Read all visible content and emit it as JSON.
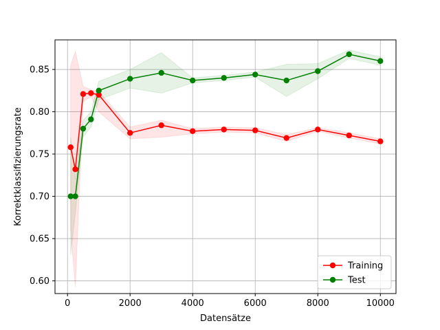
{
  "chart_data": {
    "type": "line",
    "title": "",
    "xlabel": "Datensätze",
    "ylabel": "Korrektklassifizierungsrate",
    "xlim": [
      -400,
      10500
    ],
    "ylim": [
      0.585,
      0.885
    ],
    "xticks": [
      0,
      2000,
      4000,
      6000,
      8000,
      10000
    ],
    "yticks": [
      0.6,
      0.65,
      0.7,
      0.75,
      0.8,
      0.85
    ],
    "xtick_labels": [
      "0",
      "2000",
      "4000",
      "6000",
      "8000",
      "10000"
    ],
    "ytick_labels": [
      "0.60",
      "0.65",
      "0.70",
      "0.75",
      "0.80",
      "0.85"
    ],
    "grid": true,
    "legend_position": "lower-right",
    "x": [
      100,
      250,
      500,
      750,
      1000,
      2000,
      3000,
      4000,
      5000,
      6000,
      7000,
      8000,
      9000,
      10000
    ],
    "series": [
      {
        "name": "Training",
        "color": "#ff0000",
        "band_color": "#ff0000",
        "values": [
          0.758,
          0.732,
          0.821,
          0.822,
          0.82,
          0.775,
          0.784,
          0.777,
          0.779,
          0.778,
          0.769,
          0.779,
          0.772,
          0.765
        ],
        "upper": [
          0.855,
          0.871,
          0.83,
          0.826,
          0.824,
          0.782,
          0.79,
          0.78,
          0.782,
          0.781,
          0.773,
          0.781,
          0.775,
          0.768
        ],
        "lower": [
          0.661,
          0.593,
          0.812,
          0.818,
          0.8,
          0.768,
          0.77,
          0.774,
          0.776,
          0.775,
          0.765,
          0.777,
          0.769,
          0.762
        ]
      },
      {
        "name": "Test",
        "color": "#008000",
        "band_color": "#008000",
        "values": [
          0.7,
          0.7,
          0.78,
          0.791,
          0.825,
          0.839,
          0.846,
          0.837,
          0.84,
          0.844,
          0.837,
          0.848,
          0.868,
          0.86
        ],
        "upper": [
          0.77,
          0.72,
          0.79,
          0.8,
          0.836,
          0.85,
          0.87,
          0.84,
          0.843,
          0.847,
          0.856,
          0.857,
          0.873,
          0.865
        ],
        "lower": [
          0.63,
          0.68,
          0.77,
          0.782,
          0.814,
          0.828,
          0.822,
          0.834,
          0.837,
          0.841,
          0.818,
          0.839,
          0.863,
          0.855
        ]
      }
    ]
  }
}
